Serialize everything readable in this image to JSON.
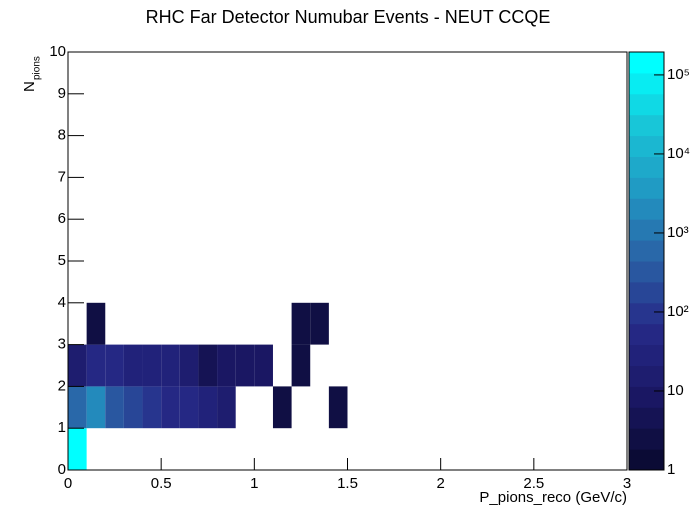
{
  "chart_data": {
    "type": "heatmap",
    "title": "RHC Far Detector Numubar Events - NEUT CCQE",
    "x_label": "P_pions_reco (GeV/c)",
    "y_label": "N",
    "y_label_sub": "pions",
    "xlim": [
      0,
      3
    ],
    "ylim": [
      0,
      10
    ],
    "zlim": [
      1,
      195000
    ],
    "zlog": true,
    "xticks": [
      0,
      0.5,
      1,
      1.5,
      2,
      2.5,
      3
    ],
    "yticks": [
      0,
      1,
      2,
      3,
      4,
      5,
      6,
      7,
      8,
      9,
      10
    ],
    "zticks": [
      1,
      10,
      {
        "value": 100,
        "label": "10²"
      },
      {
        "value": 1000,
        "label": "10³"
      },
      {
        "value": 10000,
        "label": "10⁴"
      },
      {
        "value": 100000,
        "label": "10⁵"
      }
    ],
    "xbin": 0.1,
    "ybin": 1,
    "colorscale": [
      "#0b0b35",
      "#1b1866",
      "#262a88",
      "#2a5fa4",
      "#2196c2",
      "#19c3d6",
      "#00ffff"
    ],
    "cells": [
      {
        "x": 0,
        "y": 0,
        "value": 150000
      },
      {
        "x": 0,
        "y": 1,
        "value": 800
      },
      {
        "x": 0.1,
        "y": 1,
        "value": 2000
      },
      {
        "x": 0.2,
        "y": 1,
        "value": 250
      },
      {
        "x": 0.3,
        "y": 1,
        "value": 150
      },
      {
        "x": 0.4,
        "y": 1,
        "value": 100
      },
      {
        "x": 0.5,
        "y": 1,
        "value": 60
      },
      {
        "x": 0.6,
        "y": 1,
        "value": 50
      },
      {
        "x": 0.7,
        "y": 1,
        "value": 25
      },
      {
        "x": 0.8,
        "y": 1,
        "value": 20
      },
      {
        "x": 1.1,
        "y": 1,
        "value": 2
      },
      {
        "x": 1.4,
        "y": 1,
        "value": 2
      },
      {
        "x": 0,
        "y": 2,
        "value": 20
      },
      {
        "x": 0.1,
        "y": 2,
        "value": 40
      },
      {
        "x": 0.2,
        "y": 2,
        "value": 40
      },
      {
        "x": 0.3,
        "y": 2,
        "value": 30
      },
      {
        "x": 0.4,
        "y": 2,
        "value": 25
      },
      {
        "x": 0.5,
        "y": 2,
        "value": 25
      },
      {
        "x": 0.6,
        "y": 2,
        "value": 20
      },
      {
        "x": 0.7,
        "y": 2,
        "value": 6
      },
      {
        "x": 0.8,
        "y": 2,
        "value": 10
      },
      {
        "x": 0.9,
        "y": 2,
        "value": 10
      },
      {
        "x": 1.0,
        "y": 2,
        "value": 10
      },
      {
        "x": 1.2,
        "y": 2,
        "value": 3
      },
      {
        "x": 0.1,
        "y": 3,
        "value": 2
      },
      {
        "x": 1.2,
        "y": 3,
        "value": 2
      },
      {
        "x": 1.3,
        "y": 3,
        "value": 2
      }
    ]
  }
}
